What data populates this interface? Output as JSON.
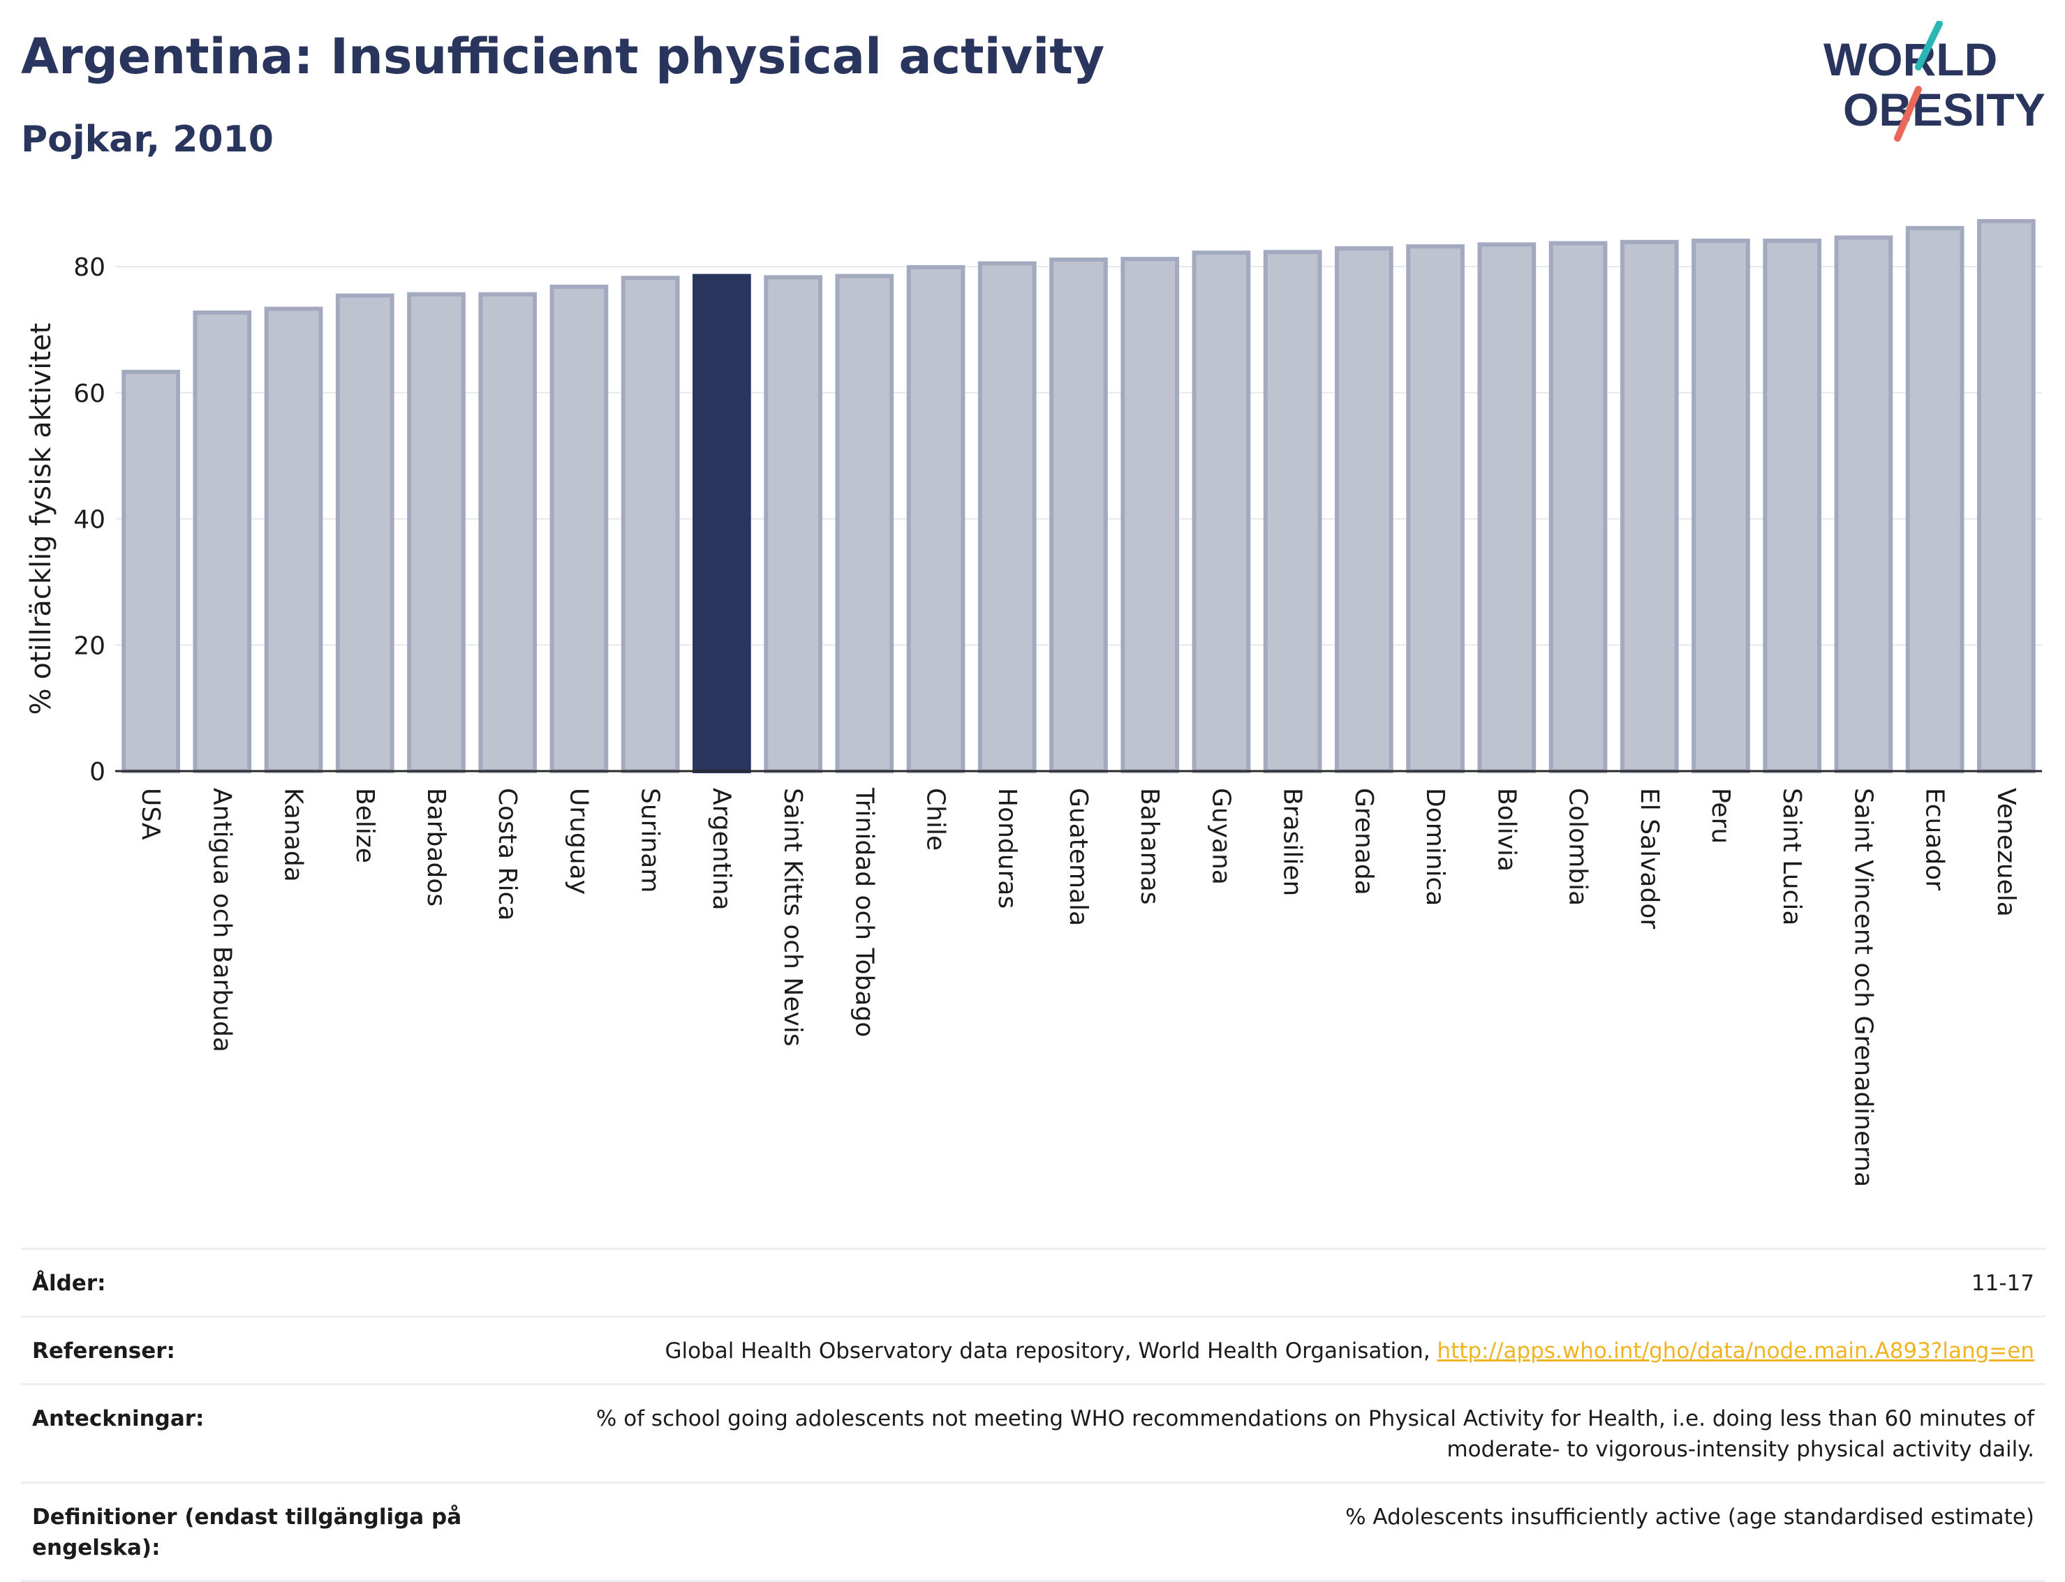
{
  "header": {
    "title": "Argentina: Insufficient physical activity",
    "subtitle": "Pojkar, 2010"
  },
  "logo": {
    "line1": "WORLD",
    "line2": "OBESITY"
  },
  "colors": {
    "highlight": "#2a355e",
    "bar": "#bfc3d0",
    "bar_edge": "#a3a9bf",
    "text": "#2a355e",
    "link": "#f0b323"
  },
  "chart_data": {
    "type": "bar",
    "ylabel": "% otillräcklig fysisk aktivitet",
    "ylim": [
      0,
      90
    ],
    "yticks": [
      0,
      20,
      40,
      60,
      80
    ],
    "grid": true,
    "highlight": "Argentina",
    "categories": [
      "USA",
      "Antigua och Barbuda",
      "Kanada",
      "Belize",
      "Barbados",
      "Costa Rica",
      "Uruguay",
      "Surinam",
      "Argentina",
      "Saint Kitts och Nevis",
      "Trinidad och Tobago",
      "Chile",
      "Honduras",
      "Guatemala",
      "Bahamas",
      "Guyana",
      "Brasilien",
      "Grenada",
      "Dominica",
      "Bolivia",
      "Colombia",
      "El Salvador",
      "Peru",
      "Saint Lucia",
      "Saint Vincent och Grenadinerna",
      "Ecuador",
      "Venezuela"
    ],
    "values": [
      63.3,
      72.7,
      73.3,
      75.4,
      75.6,
      75.6,
      76.8,
      78.2,
      78.5,
      78.3,
      78.5,
      79.9,
      80.5,
      81.1,
      81.2,
      82.2,
      82.3,
      82.9,
      83.2,
      83.5,
      83.7,
      83.9,
      84.1,
      84.1,
      84.6,
      86.1,
      87.2
    ]
  },
  "notes": [
    {
      "label": "Ålder:",
      "value": "11-17",
      "link": ""
    },
    {
      "label": "Referenser:",
      "value": "Global Health Observatory data repository, World Health Organisation, ",
      "link": "http://apps.who.int/gho/data/node.main.A893?lang=en"
    },
    {
      "label": "Anteckningar:",
      "value": "% of school going adolescents not meeting WHO recommendations on Physical Activity for Health, i.e. doing less than 60 minutes of moderate- to vigorous-intensity physical activity daily.",
      "link": ""
    },
    {
      "label": "Definitioner (endast tillgängliga på engelska):",
      "value": "% Adolescents insufficiently active (age standardised estimate)",
      "link": ""
    }
  ]
}
